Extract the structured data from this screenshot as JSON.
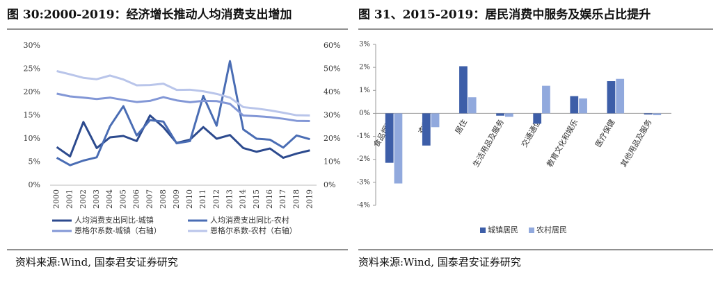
{
  "chart_data": [
    {
      "type": "line",
      "title": "图 30:2000-2019：经济增长推动人均消费支出增加",
      "source": "资料来源:Wind, 国泰君安证券研究",
      "categories": [
        "2000",
        "2001",
        "2002",
        "2003",
        "2004",
        "2005",
        "2006",
        "2007",
        "2008",
        "2009",
        "2010",
        "2011",
        "2012",
        "2013",
        "2014",
        "2015",
        "2016",
        "2017",
        "2018",
        "2019"
      ],
      "ylim": [
        0,
        30
      ],
      "yticks": [
        {
          "value": 0,
          "label": "0%"
        },
        {
          "value": 5,
          "label": "5%"
        },
        {
          "value": 10,
          "label": "10%"
        },
        {
          "value": 15,
          "label": "15%"
        },
        {
          "value": 20,
          "label": "20%"
        },
        {
          "value": 25,
          "label": "25%"
        },
        {
          "value": 30,
          "label": "30%"
        }
      ],
      "y2lim": [
        0,
        60
      ],
      "y2ticks": [
        {
          "value": 0,
          "label": "0%"
        },
        {
          "value": 10,
          "label": "10%"
        },
        {
          "value": 20,
          "label": "20%"
        },
        {
          "value": 30,
          "label": "30%"
        },
        {
          "value": 40,
          "label": "40%"
        },
        {
          "value": 50,
          "label": "50%"
        },
        {
          "value": 60,
          "label": "60%"
        }
      ],
      "series": [
        {
          "name": "人均消费支出同比-城镇",
          "color": "#2c4a8e",
          "values": [
            8.2,
            6.2,
            13.6,
            8.0,
            10.3,
            10.6,
            9.5,
            15.0,
            12.5,
            9.1,
            9.8,
            12.5,
            10.0,
            10.8,
            8.0,
            7.2,
            7.9,
            5.9,
            6.8,
            7.5
          ]
        },
        {
          "name": "人均消费支出同比-农村",
          "color": "#4a6db4",
          "values": [
            5.9,
            4.3,
            5.3,
            6.0,
            12.7,
            17.0,
            10.7,
            14.0,
            13.7,
            9.0,
            9.5,
            19.2,
            12.8,
            26.7,
            12.0,
            10.0,
            9.8,
            8.1,
            10.7,
            9.9
          ]
        },
        {
          "name": "恩格尔系数-城镇（右轴）",
          "color": "#8297d6",
          "axis": "y2",
          "values": [
            39.4,
            38.2,
            37.7,
            37.1,
            37.7,
            36.7,
            35.8,
            36.3,
            37.9,
            36.5,
            35.7,
            36.3,
            36.2,
            35.0,
            30.0,
            29.7,
            29.3,
            28.6,
            27.7,
            27.6
          ]
        },
        {
          "name": "恩格尔系数-农村（右轴）",
          "color": "#b9c5ea",
          "axis": "y2",
          "values": [
            49.1,
            47.7,
            46.2,
            45.6,
            47.2,
            45.5,
            43.0,
            43.1,
            43.7,
            41.0,
            41.1,
            40.4,
            39.3,
            37.7,
            33.6,
            33.0,
            32.2,
            31.2,
            30.1,
            30.0
          ]
        }
      ]
    },
    {
      "type": "bar",
      "title": "图 31、2015-2019：居民消费中服务及娱乐占比提升",
      "source": "资料来源:Wind, 国泰君安证券研究",
      "categories": [
        "食品烟酒",
        "衣着",
        "居住",
        "生活用品及服务",
        "交通通信",
        "教育文化和娱乐",
        "医疗保健",
        "其他用品及服务"
      ],
      "ylim": [
        -4,
        3
      ],
      "yticks": [
        {
          "value": -4,
          "label": "-4%"
        },
        {
          "value": -3,
          "label": "-3%"
        },
        {
          "value": -2,
          "label": "-2%"
        },
        {
          "value": -1,
          "label": "-1%"
        },
        {
          "value": 0,
          "label": "0%"
        },
        {
          "value": 1,
          "label": "1%"
        },
        {
          "value": 2,
          "label": "2%"
        },
        {
          "value": 3,
          "label": "3%"
        }
      ],
      "series": [
        {
          "name": "城镇居民",
          "color": "#3d5ea8",
          "values": [
            -2.15,
            -1.4,
            2.05,
            -0.1,
            -0.45,
            0.75,
            1.4,
            -0.05
          ]
        },
        {
          "name": "农村居民",
          "color": "#91a9dd",
          "values": [
            -3.05,
            -0.6,
            0.7,
            -0.15,
            1.2,
            0.65,
            1.5,
            -0.08
          ]
        }
      ]
    }
  ]
}
